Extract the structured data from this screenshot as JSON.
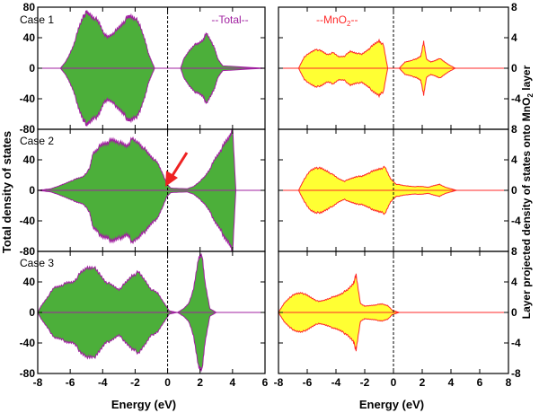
{
  "figure": {
    "left_ylabel": "Total density of states",
    "right_ylabel": "Layer projected density of  states onto MnO",
    "right_ylabel_sub": "2",
    "right_ylabel_tail": "  layer",
    "left_xlabel": "Energy (eV)",
    "right_xlabel": "Energy (eV)",
    "total_legend": "--Total--",
    "mno2_legend_pre": "--MnO",
    "mno2_legend_sub": "2",
    "mno2_legend_post": "--",
    "case_labels": [
      "Case 1",
      "Case 2",
      "Case 3"
    ],
    "left_xticks": [
      "-8",
      "-6",
      "-4",
      "-2",
      "0",
      "2",
      "4",
      "6"
    ],
    "right_xticks": [
      "-8",
      "-6",
      "-4",
      "-2",
      "0",
      "2",
      "4",
      "6",
      "8"
    ],
    "left_yticks": [
      "80",
      "40",
      "0",
      "-40",
      "-80"
    ],
    "right_yticks": [
      "8",
      "4",
      "0",
      "-4",
      "-8"
    ],
    "colors": {
      "total_fill": "#4caf3a",
      "total_line": "#a020a0",
      "mno2_fill": "#ffff33",
      "mno2_line": "#ff2a2a",
      "arrow": "#ee2222"
    }
  },
  "chart_data": [
    {
      "type": "area",
      "panel": "Case 1 total DOS",
      "series_name": "Total",
      "xlim": [
        -8,
        6
      ],
      "ylim": [
        -80,
        80
      ],
      "x": [
        -8,
        -6.6,
        -6.3,
        -6.1,
        -5.8,
        -5.5,
        -5.2,
        -5.0,
        -4.8,
        -4.5,
        -4.2,
        -3.9,
        -3.7,
        -3.4,
        -3.1,
        -2.8,
        -2.5,
        -2.3,
        -2.0,
        -1.7,
        -1.4,
        -1.2,
        -1.0,
        -0.8,
        0.8,
        1.0,
        1.3,
        1.6,
        1.9,
        2.2,
        2.4,
        2.7,
        2.9,
        3.1,
        3.4,
        6
      ],
      "y": [
        0,
        0,
        8,
        15,
        30,
        50,
        68,
        72,
        70,
        66,
        58,
        45,
        40,
        45,
        50,
        58,
        65,
        68,
        66,
        55,
        38,
        20,
        10,
        0,
        0,
        12,
        22,
        30,
        32,
        38,
        45,
        35,
        25,
        12,
        3,
        0
      ]
    },
    {
      "type": "area",
      "panel": "Case 2 total DOS",
      "series_name": "Total",
      "xlim": [
        -8,
        6
      ],
      "ylim": [
        -80,
        80
      ],
      "x": [
        -8,
        -7.2,
        -6.8,
        -6.4,
        -6.0,
        -5.6,
        -5.2,
        -4.8,
        -4.6,
        -4.3,
        -4.0,
        -3.7,
        -3.4,
        -3.1,
        -2.8,
        -2.5,
        -2.2,
        -1.8,
        -1.5,
        -1.2,
        -0.9,
        -0.6,
        -0.3,
        -0.05,
        0.2,
        1.2,
        1.6,
        2.0,
        2.3,
        2.6,
        2.9,
        3.2,
        3.5,
        3.8,
        4.0,
        4.2,
        6
      ],
      "y": [
        0,
        2,
        5,
        8,
        12,
        15,
        18,
        28,
        48,
        55,
        60,
        63,
        65,
        64,
        60,
        58,
        66,
        62,
        56,
        48,
        42,
        35,
        22,
        8,
        3,
        2,
        5,
        12,
        18,
        28,
        40,
        50,
        60,
        70,
        80,
        0,
        0
      ]
    },
    {
      "type": "area",
      "panel": "Case 3 total DOS",
      "series_name": "Total",
      "xlim": [
        -8,
        6
      ],
      "ylim": [
        -80,
        80
      ],
      "x": [
        -8,
        -7.8,
        -7.4,
        -7.0,
        -6.6,
        -6.2,
        -5.8,
        -5.4,
        -5.0,
        -4.6,
        -4.2,
        -3.8,
        -3.4,
        -3.0,
        -2.6,
        -2.2,
        -1.8,
        -1.4,
        -1.0,
        -0.6,
        -0.2,
        0.1,
        0.6,
        1.0,
        1.3,
        1.6,
        1.9,
        2.1,
        2.3,
        2.6,
        3.0,
        6
      ],
      "y": [
        0,
        8,
        20,
        32,
        35,
        38,
        40,
        50,
        58,
        60,
        50,
        40,
        35,
        30,
        38,
        48,
        52,
        42,
        30,
        25,
        12,
        2,
        0,
        5,
        12,
        30,
        70,
        78,
        40,
        5,
        0,
        0
      ]
    },
    {
      "type": "area",
      "panel": "Case 1 MnO2 layer DOS",
      "series_name": "MnO2",
      "xlim": [
        -8,
        8
      ],
      "ylim": [
        -8,
        8
      ],
      "x": [
        -8,
        -6.6,
        -6.2,
        -5.8,
        -5.4,
        -5.0,
        -4.6,
        -4.2,
        -3.8,
        -3.4,
        -3.0,
        -2.6,
        -2.2,
        -1.8,
        -1.4,
        -1.0,
        -0.7,
        -0.4,
        0.4,
        0.8,
        1.2,
        1.6,
        1.9,
        2.1,
        2.3,
        2.6,
        2.9,
        3.2,
        3.5,
        3.9,
        4.3,
        8
      ],
      "y": [
        0,
        0,
        1.5,
        2.0,
        2.5,
        2.2,
        1.8,
        2.0,
        1.5,
        1.6,
        2.2,
        2.0,
        1.8,
        2.4,
        3.0,
        3.6,
        3.0,
        0,
        0,
        0.8,
        1.0,
        1.2,
        1.6,
        3.4,
        1.2,
        0.8,
        1.0,
        1.3,
        0.9,
        0.4,
        0,
        0
      ]
    },
    {
      "type": "area",
      "panel": "Case 2 MnO2 layer DOS",
      "series_name": "MnO2",
      "xlim": [
        -8,
        8
      ],
      "ylim": [
        -8,
        8
      ],
      "x": [
        -8,
        -6.6,
        -6.2,
        -5.8,
        -5.4,
        -5.0,
        -4.6,
        -4.2,
        -3.8,
        -3.4,
        -3.0,
        -2.6,
        -2.2,
        -1.8,
        -1.4,
        -1.0,
        -0.6,
        -0.2,
        0.2,
        0.8,
        1.4,
        2.0,
        2.4,
        2.8,
        3.2,
        3.6,
        4.0,
        4.4,
        8
      ],
      "y": [
        0,
        0,
        1.5,
        2.5,
        3.0,
        2.8,
        2.5,
        2.0,
        1.5,
        1.2,
        1.5,
        1.8,
        1.8,
        2.2,
        2.5,
        2.8,
        3.0,
        1.5,
        0.8,
        0.6,
        0.5,
        0.5,
        0.4,
        0.6,
        0.8,
        0.4,
        0.2,
        0,
        0
      ]
    },
    {
      "type": "area",
      "panel": "Case 3 MnO2 layer DOS",
      "series_name": "MnO2",
      "xlim": [
        -8,
        8
      ],
      "ylim": [
        -8,
        8
      ],
      "x": [
        -8,
        -7.6,
        -7.2,
        -6.8,
        -6.4,
        -6.0,
        -5.6,
        -5.2,
        -4.8,
        -4.4,
        -4.0,
        -3.6,
        -3.2,
        -2.8,
        -2.6,
        -2.3,
        -2.0,
        -1.6,
        -1.2,
        -0.8,
        -0.4,
        -0.1,
        0.4,
        1.0,
        1.6,
        2.0,
        2.4,
        8
      ],
      "y": [
        0,
        1.2,
        2.0,
        2.4,
        2.6,
        2.2,
        1.8,
        1.4,
        1.6,
        1.9,
        2.1,
        2.5,
        2.9,
        3.8,
        4.8,
        1.2,
        0.8,
        0.9,
        1.0,
        1.1,
        0.9,
        0.3,
        0,
        0,
        0,
        0,
        0,
        0
      ]
    }
  ]
}
